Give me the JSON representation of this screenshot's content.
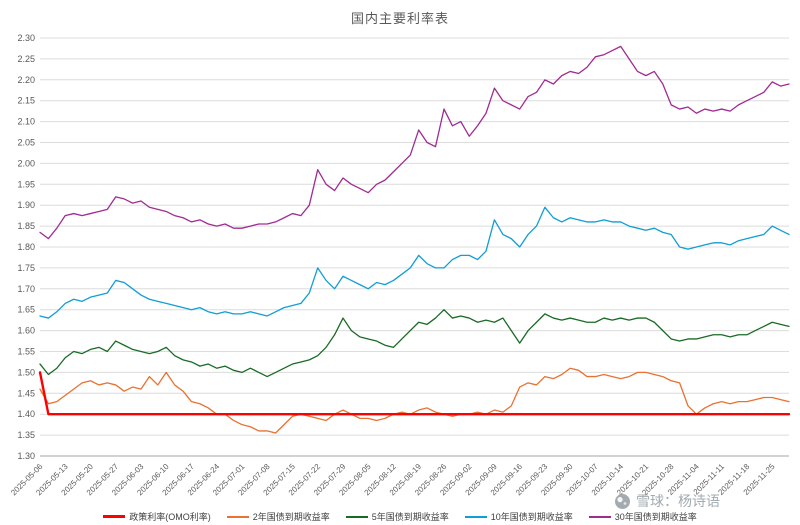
{
  "title": "国内主要利率表",
  "watermark": {
    "text": "雪球：杨诗语"
  },
  "chart_data": {
    "type": "line",
    "title": "国内主要利率表",
    "xlabel": "",
    "ylabel": "",
    "grid": true,
    "legend_position": "bottom",
    "ylim": [
      1.3,
      2.3
    ],
    "y_tick_step": 0.05,
    "y_tick_labels": [
      "2.30",
      "2.25",
      "2.20",
      "2.15",
      "2.10",
      "2.05",
      "2.00",
      "1.95",
      "1.90",
      "1.85",
      "1.80",
      "1.75",
      "1.70",
      "1.65",
      "1.60",
      "1.55",
      "1.50",
      "1.45",
      "1.40",
      "1.35",
      "1.30"
    ],
    "x_tick_labels": [
      "2025-05-06",
      "2025-05-13",
      "2025-05-20",
      "2025-05-27",
      "2025-06-03",
      "2025-06-10",
      "2025-06-17",
      "2025-06-24",
      "2025-07-01",
      "2025-07-08",
      "2025-07-15",
      "2025-07-22",
      "2025-07-29",
      "2025-08-05",
      "2025-08-12",
      "2025-08-19",
      "2025-08-26",
      "2025-09-02",
      "2025-09-09",
      "2025-09-16",
      "2025-09-23",
      "2025-09-30",
      "2025-10-07",
      "2025-10-14",
      "2025-10-21",
      "2025-10-28",
      "2025-11-04",
      "2025-11-11",
      "2025-11-18",
      "2025-11-25"
    ],
    "points_per_tick": 3,
    "grid_color": "#dcdcdc",
    "axis_color": "#a6a6a6",
    "label_color": "#595959",
    "series": [
      {
        "name": "政策利率(OMO利率)",
        "color": "#FF0000",
        "width": 2.4,
        "values": [
          1.5,
          1.4,
          1.4,
          1.4,
          1.4,
          1.4,
          1.4,
          1.4,
          1.4,
          1.4,
          1.4,
          1.4,
          1.4,
          1.4,
          1.4,
          1.4,
          1.4,
          1.4,
          1.4,
          1.4,
          1.4,
          1.4,
          1.4,
          1.4,
          1.4,
          1.4,
          1.4,
          1.4,
          1.4,
          1.4,
          1.4,
          1.4,
          1.4,
          1.4,
          1.4,
          1.4,
          1.4,
          1.4,
          1.4,
          1.4,
          1.4,
          1.4,
          1.4,
          1.4,
          1.4,
          1.4,
          1.4,
          1.4,
          1.4,
          1.4,
          1.4,
          1.4,
          1.4,
          1.4,
          1.4,
          1.4,
          1.4,
          1.4,
          1.4,
          1.4,
          1.4,
          1.4,
          1.4,
          1.4,
          1.4,
          1.4,
          1.4,
          1.4,
          1.4,
          1.4,
          1.4,
          1.4,
          1.4,
          1.4,
          1.4,
          1.4,
          1.4,
          1.4,
          1.4,
          1.4,
          1.4,
          1.4,
          1.4,
          1.4,
          1.4,
          1.4,
          1.4,
          1.4,
          1.4,
          1.4
        ]
      },
      {
        "name": "2年国债到期收益率",
        "color": "#E97132",
        "width": 1.3,
        "values": [
          1.46,
          1.425,
          1.43,
          1.445,
          1.46,
          1.475,
          1.48,
          1.47,
          1.475,
          1.47,
          1.455,
          1.465,
          1.46,
          1.49,
          1.47,
          1.5,
          1.47,
          1.455,
          1.43,
          1.425,
          1.415,
          1.4,
          1.4,
          1.385,
          1.375,
          1.37,
          1.36,
          1.36,
          1.355,
          1.375,
          1.395,
          1.4,
          1.395,
          1.39,
          1.385,
          1.4,
          1.41,
          1.4,
          1.39,
          1.39,
          1.385,
          1.39,
          1.4,
          1.405,
          1.4,
          1.41,
          1.415,
          1.405,
          1.4,
          1.395,
          1.4,
          1.4,
          1.405,
          1.4,
          1.41,
          1.405,
          1.42,
          1.465,
          1.475,
          1.47,
          1.49,
          1.485,
          1.495,
          1.51,
          1.505,
          1.49,
          1.49,
          1.495,
          1.49,
          1.485,
          1.49,
          1.5,
          1.5,
          1.495,
          1.49,
          1.48,
          1.475,
          1.42,
          1.4,
          1.415,
          1.425,
          1.43,
          1.425,
          1.43,
          1.43,
          1.435,
          1.44,
          1.44,
          1.435,
          1.43
        ]
      },
      {
        "name": "5年国债到期收益率",
        "color": "#196B24",
        "width": 1.3,
        "values": [
          1.52,
          1.495,
          1.51,
          1.535,
          1.55,
          1.545,
          1.555,
          1.56,
          1.55,
          1.575,
          1.565,
          1.555,
          1.55,
          1.545,
          1.55,
          1.56,
          1.54,
          1.53,
          1.525,
          1.515,
          1.52,
          1.51,
          1.515,
          1.505,
          1.5,
          1.51,
          1.5,
          1.49,
          1.5,
          1.51,
          1.52,
          1.525,
          1.53,
          1.54,
          1.56,
          1.59,
          1.63,
          1.6,
          1.585,
          1.58,
          1.575,
          1.565,
          1.56,
          1.58,
          1.6,
          1.62,
          1.615,
          1.63,
          1.65,
          1.63,
          1.635,
          1.63,
          1.62,
          1.625,
          1.62,
          1.63,
          1.6,
          1.57,
          1.6,
          1.62,
          1.64,
          1.63,
          1.625,
          1.63,
          1.625,
          1.62,
          1.62,
          1.63,
          1.625,
          1.63,
          1.625,
          1.63,
          1.63,
          1.62,
          1.6,
          1.58,
          1.575,
          1.58,
          1.58,
          1.585,
          1.59,
          1.59,
          1.585,
          1.59,
          1.59,
          1.6,
          1.61,
          1.62,
          1.615,
          1.61
        ]
      },
      {
        "name": "10年国债到期收益率",
        "color": "#0F9ED5",
        "width": 1.3,
        "values": [
          1.635,
          1.63,
          1.645,
          1.665,
          1.675,
          1.67,
          1.68,
          1.685,
          1.69,
          1.72,
          1.715,
          1.7,
          1.685,
          1.675,
          1.67,
          1.665,
          1.66,
          1.655,
          1.65,
          1.655,
          1.645,
          1.64,
          1.645,
          1.64,
          1.64,
          1.645,
          1.64,
          1.635,
          1.645,
          1.655,
          1.66,
          1.665,
          1.69,
          1.75,
          1.72,
          1.7,
          1.73,
          1.72,
          1.71,
          1.7,
          1.715,
          1.71,
          1.72,
          1.735,
          1.75,
          1.78,
          1.76,
          1.75,
          1.75,
          1.77,
          1.78,
          1.78,
          1.77,
          1.79,
          1.865,
          1.83,
          1.82,
          1.8,
          1.83,
          1.85,
          1.895,
          1.87,
          1.86,
          1.87,
          1.865,
          1.86,
          1.86,
          1.865,
          1.86,
          1.86,
          1.85,
          1.845,
          1.84,
          1.845,
          1.835,
          1.83,
          1.8,
          1.795,
          1.8,
          1.805,
          1.81,
          1.81,
          1.805,
          1.815,
          1.82,
          1.825,
          1.83,
          1.85,
          1.84,
          1.83
        ]
      },
      {
        "name": "30年国债到期收益率",
        "color": "#A02B93",
        "width": 1.3,
        "values": [
          1.835,
          1.82,
          1.845,
          1.875,
          1.88,
          1.875,
          1.88,
          1.885,
          1.89,
          1.92,
          1.915,
          1.905,
          1.91,
          1.895,
          1.89,
          1.885,
          1.875,
          1.87,
          1.86,
          1.865,
          1.855,
          1.85,
          1.855,
          1.845,
          1.845,
          1.85,
          1.855,
          1.855,
          1.86,
          1.87,
          1.88,
          1.875,
          1.9,
          1.985,
          1.95,
          1.935,
          1.965,
          1.95,
          1.94,
          1.93,
          1.95,
          1.96,
          1.98,
          2.0,
          2.02,
          2.08,
          2.05,
          2.04,
          2.13,
          2.09,
          2.1,
          2.065,
          2.09,
          2.12,
          2.18,
          2.15,
          2.14,
          2.13,
          2.16,
          2.17,
          2.2,
          2.19,
          2.21,
          2.22,
          2.215,
          2.23,
          2.255,
          2.26,
          2.27,
          2.28,
          2.25,
          2.22,
          2.21,
          2.22,
          2.19,
          2.14,
          2.13,
          2.135,
          2.12,
          2.13,
          2.125,
          2.13,
          2.125,
          2.14,
          2.15,
          2.16,
          2.17,
          2.195,
          2.185,
          2.19
        ]
      }
    ]
  }
}
